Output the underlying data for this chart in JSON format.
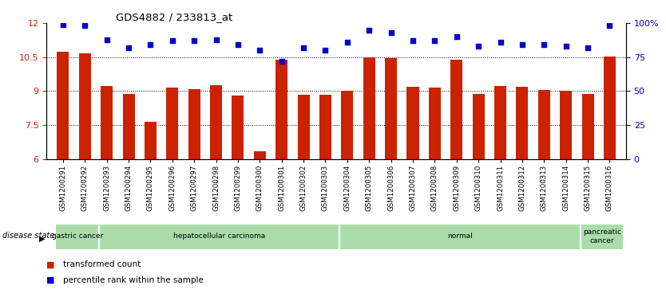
{
  "title": "GDS4882 / 233813_at",
  "categories": [
    "GSM1200291",
    "GSM1200292",
    "GSM1200293",
    "GSM1200294",
    "GSM1200295",
    "GSM1200296",
    "GSM1200297",
    "GSM1200298",
    "GSM1200299",
    "GSM1200300",
    "GSM1200301",
    "GSM1200302",
    "GSM1200303",
    "GSM1200304",
    "GSM1200305",
    "GSM1200306",
    "GSM1200307",
    "GSM1200308",
    "GSM1200309",
    "GSM1200310",
    "GSM1200311",
    "GSM1200312",
    "GSM1200313",
    "GSM1200314",
    "GSM1200315",
    "GSM1200316"
  ],
  "bar_values": [
    10.72,
    10.68,
    9.22,
    8.87,
    7.65,
    9.15,
    9.1,
    9.25,
    8.8,
    6.35,
    10.4,
    8.82,
    8.82,
    9.02,
    10.48,
    10.47,
    9.18,
    9.15,
    10.38,
    8.88,
    9.22,
    9.2,
    9.03,
    9.02,
    8.88,
    10.52
  ],
  "percentile_values": [
    99,
    98,
    88,
    82,
    84,
    87,
    87,
    88,
    84,
    80,
    72,
    82,
    80,
    86,
    95,
    93,
    87,
    87,
    90,
    83,
    86,
    84,
    84,
    83,
    82,
    98
  ],
  "bar_color": "#CC2200",
  "dot_color": "#0000CC",
  "ylim_left": [
    6,
    12
  ],
  "ylim_right": [
    0,
    100
  ],
  "yticks_left": [
    6,
    7.5,
    9,
    10.5,
    12
  ],
  "yticks_right": [
    0,
    25,
    50,
    75,
    100
  ],
  "ytick_labels_right": [
    "0",
    "25",
    "50",
    "75",
    "100%"
  ],
  "grid_values": [
    7.5,
    9.0,
    10.5
  ],
  "disease_groups": [
    {
      "label": "gastric cancer",
      "start": 0,
      "end": 2
    },
    {
      "label": "hepatocellular carcinoma",
      "start": 2,
      "end": 13
    },
    {
      "label": "normal",
      "start": 13,
      "end": 24
    },
    {
      "label": "pancreatic\ncancer",
      "start": 24,
      "end": 26
    }
  ],
  "legend_items": [
    {
      "label": "transformed count",
      "color": "#CC2200"
    },
    {
      "label": "percentile rank within the sample",
      "color": "#0000CC"
    }
  ],
  "disease_label": "disease state",
  "disease_band_color": "#aaddaa",
  "background_color": "#ffffff",
  "bar_width": 0.55,
  "xlim": [
    -0.75,
    25.75
  ]
}
